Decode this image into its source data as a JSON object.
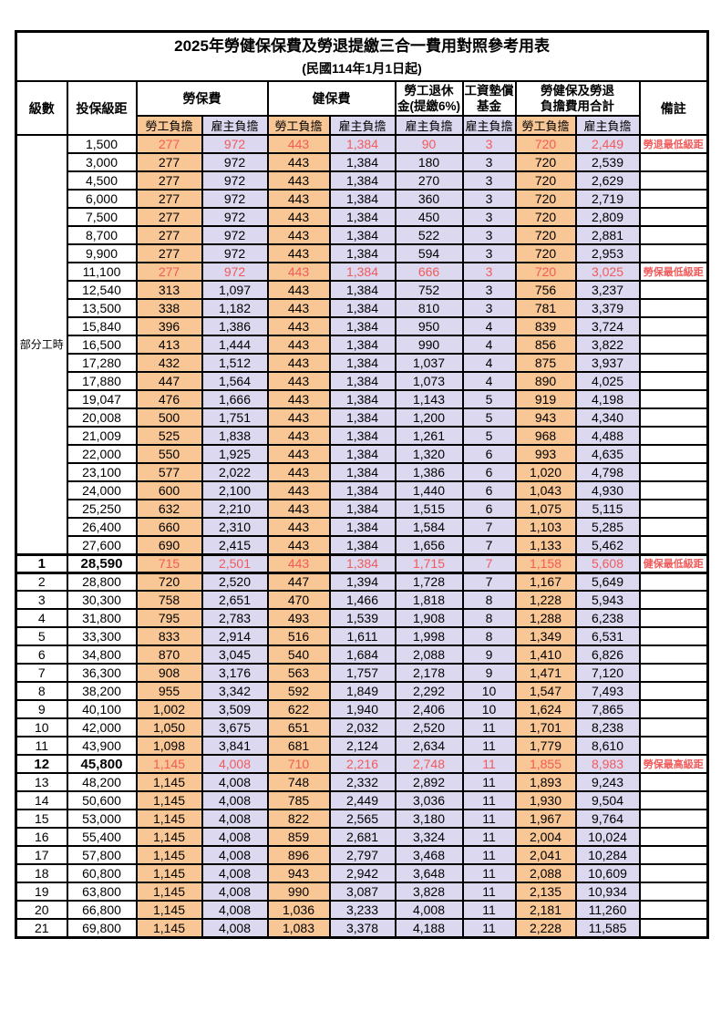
{
  "title": "2025年勞健保保費及勞退提繳三合一費用對照參考用表",
  "subtitle": "(民國114年1月1日起)",
  "header": {
    "level": "級數",
    "bracket": "投保級距",
    "labor_fee": "勞保費",
    "health_fee": "健保費",
    "pension": [
      "勞工退休",
      "金(提繳6%)"
    ],
    "wage_fund": [
      "工資墊償",
      "基金"
    ],
    "total": [
      "勞健保及勞退",
      "負擔費用合計"
    ],
    "remark": "備註",
    "employee_share": "勞工負擔",
    "employer_share": "雇主負擔"
  },
  "part_time": {
    "label": "部分工時",
    "row_count": 23
  },
  "colors": {
    "employee_bg": "#F9C795",
    "employer_bg": "#DBD8EF",
    "highlight_text": "#F25B5B",
    "border": "#000000"
  },
  "rows": [
    {
      "lv": "",
      "bracket": "1,500",
      "li_e": "277",
      "li_r": "972",
      "hi_e": "443",
      "hi_r": "1,384",
      "pen": "90",
      "wf": "3",
      "tot_e": "720",
      "tot_r": "2,449",
      "remark": "勞退最低級距",
      "red": true,
      "emph": false,
      "thick": false
    },
    {
      "lv": "",
      "bracket": "3,000",
      "li_e": "277",
      "li_r": "972",
      "hi_e": "443",
      "hi_r": "1,384",
      "pen": "180",
      "wf": "3",
      "tot_e": "720",
      "tot_r": "2,539",
      "remark": "",
      "red": false,
      "emph": false,
      "thick": false
    },
    {
      "lv": "",
      "bracket": "4,500",
      "li_e": "277",
      "li_r": "972",
      "hi_e": "443",
      "hi_r": "1,384",
      "pen": "270",
      "wf": "3",
      "tot_e": "720",
      "tot_r": "2,629",
      "remark": "",
      "red": false,
      "emph": false,
      "thick": false
    },
    {
      "lv": "",
      "bracket": "6,000",
      "li_e": "277",
      "li_r": "972",
      "hi_e": "443",
      "hi_r": "1,384",
      "pen": "360",
      "wf": "3",
      "tot_e": "720",
      "tot_r": "2,719",
      "remark": "",
      "red": false,
      "emph": false,
      "thick": false
    },
    {
      "lv": "",
      "bracket": "7,500",
      "li_e": "277",
      "li_r": "972",
      "hi_e": "443",
      "hi_r": "1,384",
      "pen": "450",
      "wf": "3",
      "tot_e": "720",
      "tot_r": "2,809",
      "remark": "",
      "red": false,
      "emph": false,
      "thick": false
    },
    {
      "lv": "",
      "bracket": "8,700",
      "li_e": "277",
      "li_r": "972",
      "hi_e": "443",
      "hi_r": "1,384",
      "pen": "522",
      "wf": "3",
      "tot_e": "720",
      "tot_r": "2,881",
      "remark": "",
      "red": false,
      "emph": false,
      "thick": false
    },
    {
      "lv": "",
      "bracket": "9,900",
      "li_e": "277",
      "li_r": "972",
      "hi_e": "443",
      "hi_r": "1,384",
      "pen": "594",
      "wf": "3",
      "tot_e": "720",
      "tot_r": "2,953",
      "remark": "",
      "red": false,
      "emph": false,
      "thick": false
    },
    {
      "lv": "",
      "bracket": "11,100",
      "li_e": "277",
      "li_r": "972",
      "hi_e": "443",
      "hi_r": "1,384",
      "pen": "666",
      "wf": "3",
      "tot_e": "720",
      "tot_r": "3,025",
      "remark": "勞保最低級距",
      "red": true,
      "emph": false,
      "thick": false
    },
    {
      "lv": "",
      "bracket": "12,540",
      "li_e": "313",
      "li_r": "1,097",
      "hi_e": "443",
      "hi_r": "1,384",
      "pen": "752",
      "wf": "3",
      "tot_e": "756",
      "tot_r": "3,237",
      "remark": "",
      "red": false,
      "emph": false,
      "thick": false
    },
    {
      "lv": "",
      "bracket": "13,500",
      "li_e": "338",
      "li_r": "1,182",
      "hi_e": "443",
      "hi_r": "1,384",
      "pen": "810",
      "wf": "3",
      "tot_e": "781",
      "tot_r": "3,379",
      "remark": "",
      "red": false,
      "emph": false,
      "thick": false
    },
    {
      "lv": "",
      "bracket": "15,840",
      "li_e": "396",
      "li_r": "1,386",
      "hi_e": "443",
      "hi_r": "1,384",
      "pen": "950",
      "wf": "4",
      "tot_e": "839",
      "tot_r": "3,724",
      "remark": "",
      "red": false,
      "emph": false,
      "thick": false
    },
    {
      "lv": "",
      "bracket": "16,500",
      "li_e": "413",
      "li_r": "1,444",
      "hi_e": "443",
      "hi_r": "1,384",
      "pen": "990",
      "wf": "4",
      "tot_e": "856",
      "tot_r": "3,822",
      "remark": "",
      "red": false,
      "emph": false,
      "thick": false
    },
    {
      "lv": "",
      "bracket": "17,280",
      "li_e": "432",
      "li_r": "1,512",
      "hi_e": "443",
      "hi_r": "1,384",
      "pen": "1,037",
      "wf": "4",
      "tot_e": "875",
      "tot_r": "3,937",
      "remark": "",
      "red": false,
      "emph": false,
      "thick": false
    },
    {
      "lv": "",
      "bracket": "17,880",
      "li_e": "447",
      "li_r": "1,564",
      "hi_e": "443",
      "hi_r": "1,384",
      "pen": "1,073",
      "wf": "4",
      "tot_e": "890",
      "tot_r": "4,025",
      "remark": "",
      "red": false,
      "emph": false,
      "thick": false
    },
    {
      "lv": "",
      "bracket": "19,047",
      "li_e": "476",
      "li_r": "1,666",
      "hi_e": "443",
      "hi_r": "1,384",
      "pen": "1,143",
      "wf": "5",
      "tot_e": "919",
      "tot_r": "4,198",
      "remark": "",
      "red": false,
      "emph": false,
      "thick": false
    },
    {
      "lv": "",
      "bracket": "20,008",
      "li_e": "500",
      "li_r": "1,751",
      "hi_e": "443",
      "hi_r": "1,384",
      "pen": "1,200",
      "wf": "5",
      "tot_e": "943",
      "tot_r": "4,340",
      "remark": "",
      "red": false,
      "emph": false,
      "thick": false
    },
    {
      "lv": "",
      "bracket": "21,009",
      "li_e": "525",
      "li_r": "1,838",
      "hi_e": "443",
      "hi_r": "1,384",
      "pen": "1,261",
      "wf": "5",
      "tot_e": "968",
      "tot_r": "4,488",
      "remark": "",
      "red": false,
      "emph": false,
      "thick": false
    },
    {
      "lv": "",
      "bracket": "22,000",
      "li_e": "550",
      "li_r": "1,925",
      "hi_e": "443",
      "hi_r": "1,384",
      "pen": "1,320",
      "wf": "6",
      "tot_e": "993",
      "tot_r": "4,635",
      "remark": "",
      "red": false,
      "emph": false,
      "thick": false
    },
    {
      "lv": "",
      "bracket": "23,100",
      "li_e": "577",
      "li_r": "2,022",
      "hi_e": "443",
      "hi_r": "1,384",
      "pen": "1,386",
      "wf": "6",
      "tot_e": "1,020",
      "tot_r": "4,798",
      "remark": "",
      "red": false,
      "emph": false,
      "thick": false
    },
    {
      "lv": "",
      "bracket": "24,000",
      "li_e": "600",
      "li_r": "2,100",
      "hi_e": "443",
      "hi_r": "1,384",
      "pen": "1,440",
      "wf": "6",
      "tot_e": "1,043",
      "tot_r": "4,930",
      "remark": "",
      "red": false,
      "emph": false,
      "thick": false
    },
    {
      "lv": "",
      "bracket": "25,250",
      "li_e": "632",
      "li_r": "2,210",
      "hi_e": "443",
      "hi_r": "1,384",
      "pen": "1,515",
      "wf": "6",
      "tot_e": "1,075",
      "tot_r": "5,115",
      "remark": "",
      "red": false,
      "emph": false,
      "thick": false
    },
    {
      "lv": "",
      "bracket": "26,400",
      "li_e": "660",
      "li_r": "2,310",
      "hi_e": "443",
      "hi_r": "1,384",
      "pen": "1,584",
      "wf": "7",
      "tot_e": "1,103",
      "tot_r": "5,285",
      "remark": "",
      "red": false,
      "emph": false,
      "thick": false
    },
    {
      "lv": "",
      "bracket": "27,600",
      "li_e": "690",
      "li_r": "2,415",
      "hi_e": "443",
      "hi_r": "1,384",
      "pen": "1,656",
      "wf": "7",
      "tot_e": "1,133",
      "tot_r": "5,462",
      "remark": "",
      "red": false,
      "emph": false,
      "thick": false
    },
    {
      "lv": "1",
      "bracket": "28,590",
      "li_e": "715",
      "li_r": "2,501",
      "hi_e": "443",
      "hi_r": "1,384",
      "pen": "1,715",
      "wf": "7",
      "tot_e": "1,158",
      "tot_r": "5,608",
      "remark": "健保最低級距",
      "red": true,
      "emph": true,
      "thick": true
    },
    {
      "lv": "2",
      "bracket": "28,800",
      "li_e": "720",
      "li_r": "2,520",
      "hi_e": "447",
      "hi_r": "1,394",
      "pen": "1,728",
      "wf": "7",
      "tot_e": "1,167",
      "tot_r": "5,649",
      "remark": "",
      "red": false,
      "emph": false,
      "thick": false
    },
    {
      "lv": "3",
      "bracket": "30,300",
      "li_e": "758",
      "li_r": "2,651",
      "hi_e": "470",
      "hi_r": "1,466",
      "pen": "1,818",
      "wf": "8",
      "tot_e": "1,228",
      "tot_r": "5,943",
      "remark": "",
      "red": false,
      "emph": false,
      "thick": false
    },
    {
      "lv": "4",
      "bracket": "31,800",
      "li_e": "795",
      "li_r": "2,783",
      "hi_e": "493",
      "hi_r": "1,539",
      "pen": "1,908",
      "wf": "8",
      "tot_e": "1,288",
      "tot_r": "6,238",
      "remark": "",
      "red": false,
      "emph": false,
      "thick": false
    },
    {
      "lv": "5",
      "bracket": "33,300",
      "li_e": "833",
      "li_r": "2,914",
      "hi_e": "516",
      "hi_r": "1,611",
      "pen": "1,998",
      "wf": "8",
      "tot_e": "1,349",
      "tot_r": "6,531",
      "remark": "",
      "red": false,
      "emph": false,
      "thick": false
    },
    {
      "lv": "6",
      "bracket": "34,800",
      "li_e": "870",
      "li_r": "3,045",
      "hi_e": "540",
      "hi_r": "1,684",
      "pen": "2,088",
      "wf": "9",
      "tot_e": "1,410",
      "tot_r": "6,826",
      "remark": "",
      "red": false,
      "emph": false,
      "thick": false
    },
    {
      "lv": "7",
      "bracket": "36,300",
      "li_e": "908",
      "li_r": "3,176",
      "hi_e": "563",
      "hi_r": "1,757",
      "pen": "2,178",
      "wf": "9",
      "tot_e": "1,471",
      "tot_r": "7,120",
      "remark": "",
      "red": false,
      "emph": false,
      "thick": false
    },
    {
      "lv": "8",
      "bracket": "38,200",
      "li_e": "955",
      "li_r": "3,342",
      "hi_e": "592",
      "hi_r": "1,849",
      "pen": "2,292",
      "wf": "10",
      "tot_e": "1,547",
      "tot_r": "7,493",
      "remark": "",
      "red": false,
      "emph": false,
      "thick": false
    },
    {
      "lv": "9",
      "bracket": "40,100",
      "li_e": "1,002",
      "li_r": "3,509",
      "hi_e": "622",
      "hi_r": "1,940",
      "pen": "2,406",
      "wf": "10",
      "tot_e": "1,624",
      "tot_r": "7,865",
      "remark": "",
      "red": false,
      "emph": false,
      "thick": false
    },
    {
      "lv": "10",
      "bracket": "42,000",
      "li_e": "1,050",
      "li_r": "3,675",
      "hi_e": "651",
      "hi_r": "2,032",
      "pen": "2,520",
      "wf": "11",
      "tot_e": "1,701",
      "tot_r": "8,238",
      "remark": "",
      "red": false,
      "emph": false,
      "thick": false
    },
    {
      "lv": "11",
      "bracket": "43,900",
      "li_e": "1,098",
      "li_r": "3,841",
      "hi_e": "681",
      "hi_r": "2,124",
      "pen": "2,634",
      "wf": "11",
      "tot_e": "1,779",
      "tot_r": "8,610",
      "remark": "",
      "red": false,
      "emph": false,
      "thick": false
    },
    {
      "lv": "12",
      "bracket": "45,800",
      "li_e": "1,145",
      "li_r": "4,008",
      "hi_e": "710",
      "hi_r": "2,216",
      "pen": "2,748",
      "wf": "11",
      "tot_e": "1,855",
      "tot_r": "8,983",
      "remark": "勞保最高級距",
      "red": true,
      "emph": true,
      "thick": false
    },
    {
      "lv": "13",
      "bracket": "48,200",
      "li_e": "1,145",
      "li_r": "4,008",
      "hi_e": "748",
      "hi_r": "2,332",
      "pen": "2,892",
      "wf": "11",
      "tot_e": "1,893",
      "tot_r": "9,243",
      "remark": "",
      "red": false,
      "emph": false,
      "thick": false
    },
    {
      "lv": "14",
      "bracket": "50,600",
      "li_e": "1,145",
      "li_r": "4,008",
      "hi_e": "785",
      "hi_r": "2,449",
      "pen": "3,036",
      "wf": "11",
      "tot_e": "1,930",
      "tot_r": "9,504",
      "remark": "",
      "red": false,
      "emph": false,
      "thick": false
    },
    {
      "lv": "15",
      "bracket": "53,000",
      "li_e": "1,145",
      "li_r": "4,008",
      "hi_e": "822",
      "hi_r": "2,565",
      "pen": "3,180",
      "wf": "11",
      "tot_e": "1,967",
      "tot_r": "9,764",
      "remark": "",
      "red": false,
      "emph": false,
      "thick": false
    },
    {
      "lv": "16",
      "bracket": "55,400",
      "li_e": "1,145",
      "li_r": "4,008",
      "hi_e": "859",
      "hi_r": "2,681",
      "pen": "3,324",
      "wf": "11",
      "tot_e": "2,004",
      "tot_r": "10,024",
      "remark": "",
      "red": false,
      "emph": false,
      "thick": false
    },
    {
      "lv": "17",
      "bracket": "57,800",
      "li_e": "1,145",
      "li_r": "4,008",
      "hi_e": "896",
      "hi_r": "2,797",
      "pen": "3,468",
      "wf": "11",
      "tot_e": "2,041",
      "tot_r": "10,284",
      "remark": "",
      "red": false,
      "emph": false,
      "thick": false
    },
    {
      "lv": "18",
      "bracket": "60,800",
      "li_e": "1,145",
      "li_r": "4,008",
      "hi_e": "943",
      "hi_r": "2,942",
      "pen": "3,648",
      "wf": "11",
      "tot_e": "2,088",
      "tot_r": "10,609",
      "remark": "",
      "red": false,
      "emph": false,
      "thick": false
    },
    {
      "lv": "19",
      "bracket": "63,800",
      "li_e": "1,145",
      "li_r": "4,008",
      "hi_e": "990",
      "hi_r": "3,087",
      "pen": "3,828",
      "wf": "11",
      "tot_e": "2,135",
      "tot_r": "10,934",
      "remark": "",
      "red": false,
      "emph": false,
      "thick": false
    },
    {
      "lv": "20",
      "bracket": "66,800",
      "li_e": "1,145",
      "li_r": "4,008",
      "hi_e": "1,036",
      "hi_r": "3,233",
      "pen": "4,008",
      "wf": "11",
      "tot_e": "2,181",
      "tot_r": "11,260",
      "remark": "",
      "red": false,
      "emph": false,
      "thick": false
    },
    {
      "lv": "21",
      "bracket": "69,800",
      "li_e": "1,145",
      "li_r": "4,008",
      "hi_e": "1,083",
      "hi_r": "3,378",
      "pen": "4,188",
      "wf": "11",
      "tot_e": "2,228",
      "tot_r": "11,585",
      "remark": "",
      "red": false,
      "emph": false,
      "thick": false
    }
  ]
}
